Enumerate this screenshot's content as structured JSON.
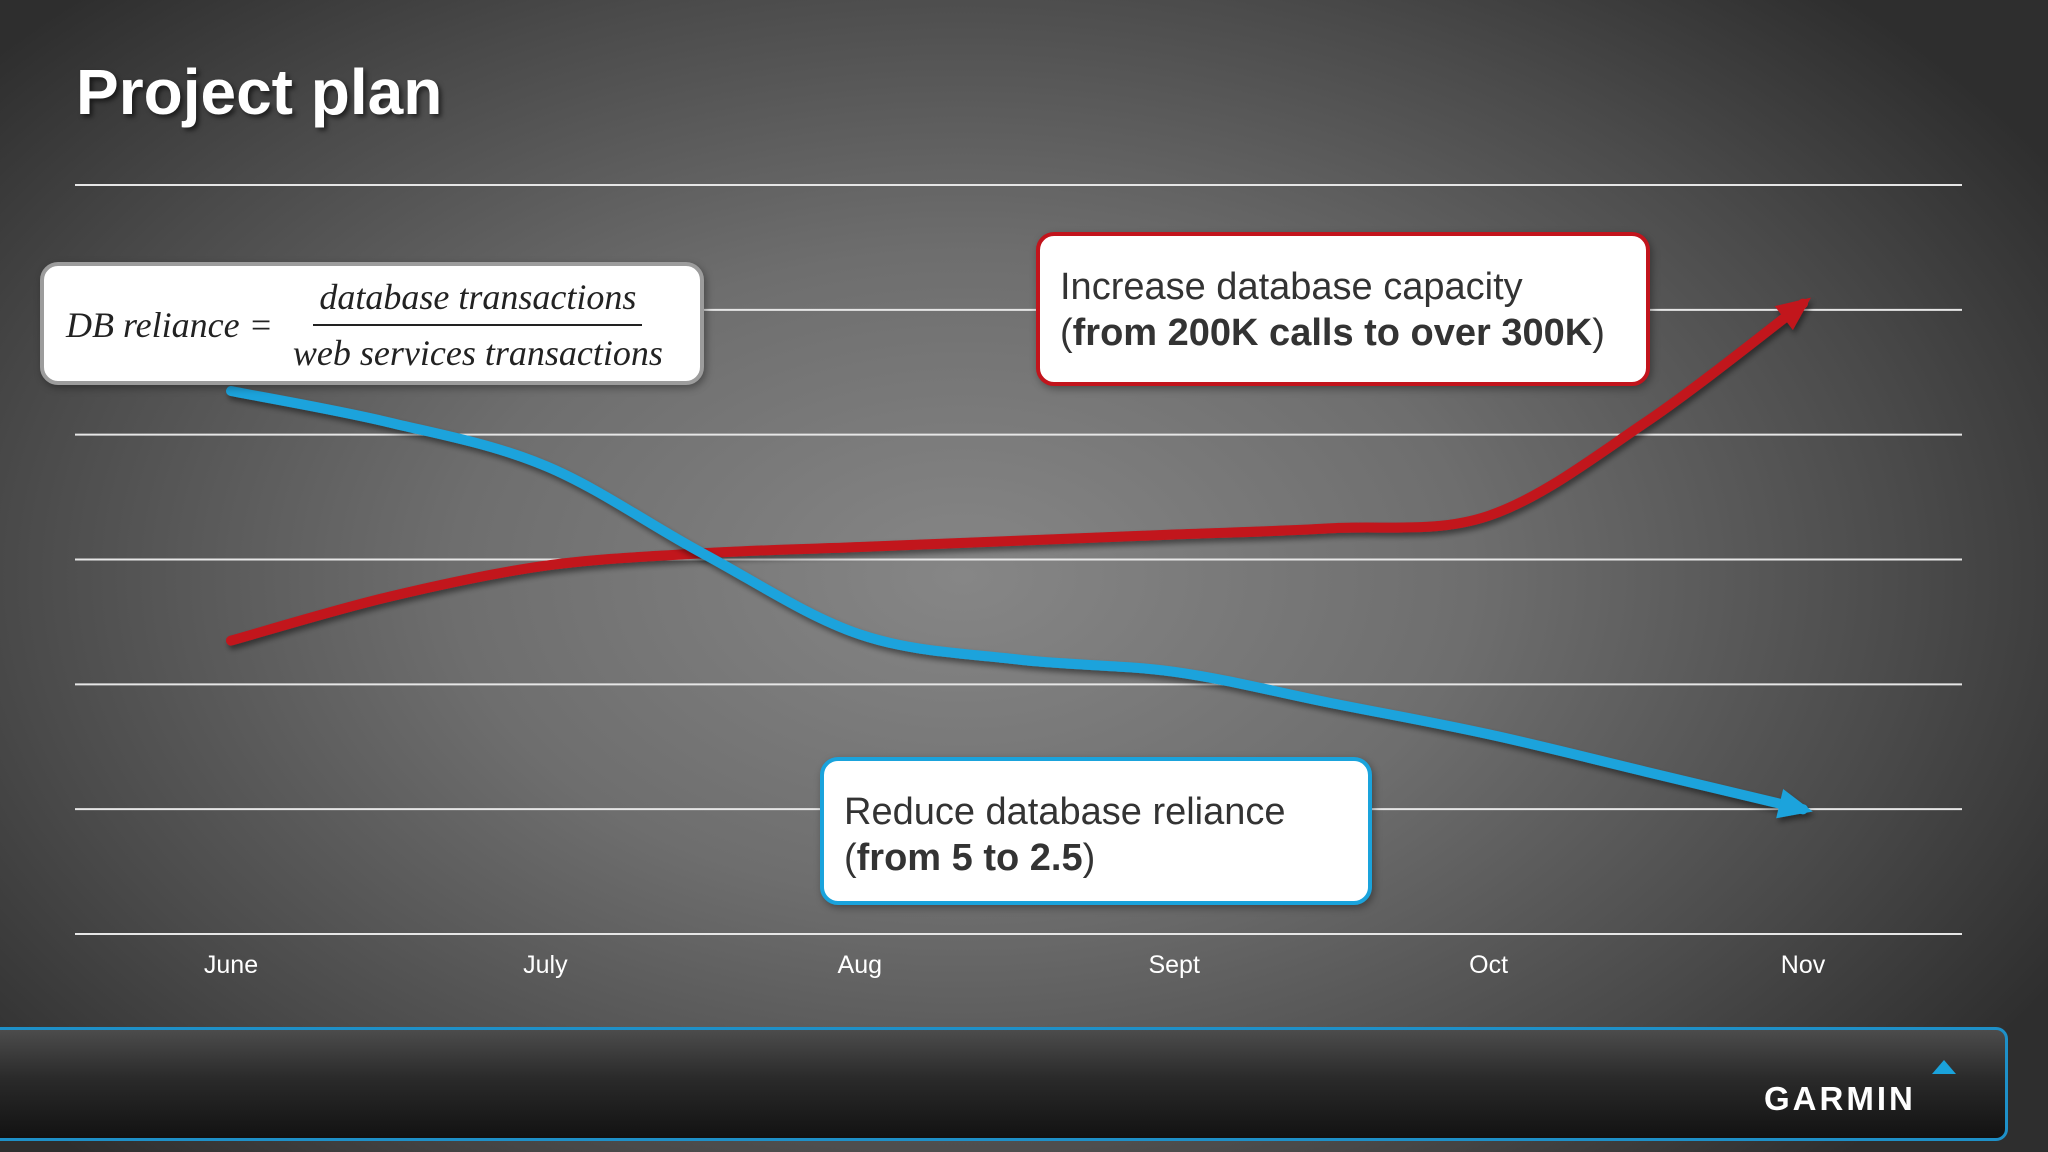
{
  "slide": {
    "title": "Project plan",
    "logo_text": "GARMIN"
  },
  "formula": {
    "lhs": "DB reliance =",
    "numerator": "database transactions",
    "denominator": "web services transactions"
  },
  "callouts": {
    "capacity": {
      "line1": "Increase database capacity",
      "line2_open": "(",
      "line2_bold": "from 200K calls to over 300K",
      "line2_close": ")"
    },
    "reliance": {
      "line1": "Reduce database reliance",
      "line2_open": "(",
      "line2_bold": "from 5 to 2.5",
      "line2_close": ")"
    }
  },
  "colors": {
    "capacity_line": "#c2141c",
    "reliance_line": "#1aa3dc",
    "gridline": "#e6e6e6",
    "tick_text": "#ffffff"
  },
  "chart_data": {
    "type": "line",
    "title": "Project plan",
    "x": [
      "June",
      "July",
      "Aug",
      "Sept",
      "Oct",
      "Nov"
    ],
    "y_range": [
      0,
      6
    ],
    "gridlines": [
      0,
      1,
      2,
      3,
      4,
      5,
      6
    ],
    "grid": true,
    "series": [
      {
        "color": "#c2141c",
        "points": [
          [
            0,
            2.35
          ],
          [
            0.5,
            2.7
          ],
          [
            1,
            2.95
          ],
          [
            1.5,
            3.05
          ],
          [
            2,
            3.1
          ],
          [
            2.5,
            3.15
          ],
          [
            3,
            3.2
          ],
          [
            3.5,
            3.25
          ],
          [
            4,
            3.35
          ],
          [
            4.5,
            4.1
          ],
          [
            5,
            5.05
          ]
        ]
      },
      {
        "color": "#1aa3dc",
        "points": [
          [
            0,
            4.35
          ],
          [
            0.5,
            4.1
          ],
          [
            1,
            3.75
          ],
          [
            1.5,
            3.05
          ],
          [
            2,
            2.4
          ],
          [
            2.5,
            2.2
          ],
          [
            3,
            2.1
          ],
          [
            3.5,
            1.85
          ],
          [
            4,
            1.6
          ],
          [
            4.5,
            1.3
          ],
          [
            5,
            1.0
          ]
        ]
      }
    ]
  }
}
